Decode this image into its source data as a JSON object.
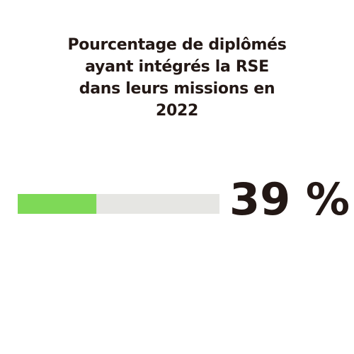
{
  "chart_data": {
    "type": "progress",
    "title": "Pourcentage de diplômés ayant intégrés la RSE dans leurs missions en 2022",
    "values": [
      39
    ],
    "value_labels": [
      "39 %"
    ],
    "xlim": [
      0,
      100
    ],
    "color": "#7ed957",
    "track_color": "#e6e6e3"
  }
}
